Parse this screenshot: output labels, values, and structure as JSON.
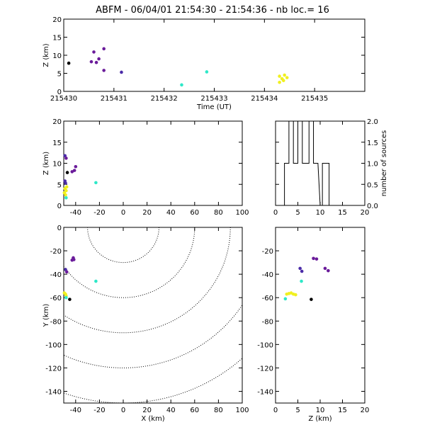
{
  "title": "ABFM - 06/04/01 21:54:30 - 21:54:36 - nb loc.=      16",
  "colors": {
    "purple": "#6a1b9a",
    "indigo": "#4b2ca8",
    "black": "#000000",
    "cyan": "#2ee8c8",
    "yellow": "#f0f020"
  },
  "chart_data": [
    {
      "type": "scatter",
      "id": "z-vs-time",
      "xlabel": "Time (UT)",
      "ylabel": "Z (km)",
      "xlim": [
        215430,
        215436
      ],
      "ylim": [
        0,
        20
      ],
      "xticks": [
        "215430",
        "215431",
        "215432",
        "215433",
        "215434",
        "215435"
      ],
      "yticks": [
        "0",
        "5",
        "10",
        "15",
        "20"
      ],
      "points": [
        {
          "x": 215430.1,
          "y": 7.8,
          "color": "black"
        },
        {
          "x": 215430.55,
          "y": 8.2,
          "color": "purple"
        },
        {
          "x": 215430.6,
          "y": 10.9,
          "color": "purple"
        },
        {
          "x": 215430.65,
          "y": 8.0,
          "color": "purple"
        },
        {
          "x": 215430.7,
          "y": 9.0,
          "color": "purple"
        },
        {
          "x": 215430.8,
          "y": 11.8,
          "color": "purple"
        },
        {
          "x": 215430.8,
          "y": 5.8,
          "color": "purple"
        },
        {
          "x": 215431.15,
          "y": 5.3,
          "color": "indigo"
        },
        {
          "x": 215432.35,
          "y": 1.8,
          "color": "cyan"
        },
        {
          "x": 215432.85,
          "y": 5.4,
          "color": "cyan"
        },
        {
          "x": 215434.3,
          "y": 2.5,
          "color": "yellow"
        },
        {
          "x": 215434.35,
          "y": 3.5,
          "color": "yellow"
        },
        {
          "x": 215434.4,
          "y": 4.5,
          "color": "yellow"
        },
        {
          "x": 215434.45,
          "y": 3.8,
          "color": "yellow"
        },
        {
          "x": 215434.3,
          "y": 4.2,
          "color": "yellow"
        },
        {
          "x": 215434.38,
          "y": 3.0,
          "color": "yellow"
        }
      ]
    },
    {
      "type": "scatter",
      "id": "z-vs-x",
      "xlabel": "",
      "ylabel": "Z (km)",
      "xlim": [
        -50,
        100
      ],
      "ylim": [
        0,
        20
      ],
      "xticks": [
        "-40",
        "-20",
        "0",
        "20",
        "40",
        "60",
        "80",
        "100"
      ],
      "yticks": [
        "0",
        "5",
        "10",
        "15",
        "20"
      ],
      "points": [
        {
          "x": -49,
          "y": 11.8,
          "color": "indigo"
        },
        {
          "x": -48,
          "y": 11.2,
          "color": "purple"
        },
        {
          "x": -49,
          "y": 5.8,
          "color": "indigo"
        },
        {
          "x": -48.5,
          "y": 5.3,
          "color": "indigo"
        },
        {
          "x": -43,
          "y": 8.0,
          "color": "purple"
        },
        {
          "x": -41,
          "y": 8.3,
          "color": "purple"
        },
        {
          "x": -40,
          "y": 9.2,
          "color": "purple"
        },
        {
          "x": -47,
          "y": 7.8,
          "color": "black"
        },
        {
          "x": -49,
          "y": 4.0,
          "color": "yellow"
        },
        {
          "x": -48,
          "y": 3.5,
          "color": "yellow"
        },
        {
          "x": -49.5,
          "y": 3.0,
          "color": "yellow"
        },
        {
          "x": -47.5,
          "y": 4.4,
          "color": "yellow"
        },
        {
          "x": -48.5,
          "y": 2.5,
          "color": "yellow"
        },
        {
          "x": -48,
          "y": 1.8,
          "color": "cyan"
        },
        {
          "x": -23,
          "y": 5.4,
          "color": "cyan"
        }
      ]
    },
    {
      "type": "histogram",
      "id": "sources-vs-z",
      "xlabel": "",
      "ylabel": "number of sources",
      "xlim": [
        0,
        20
      ],
      "ylim": [
        0,
        2
      ],
      "xticks": [
        "0",
        "5",
        "10",
        "15",
        "20"
      ],
      "yticks": [
        "0.0",
        "0.5",
        "1.0",
        "1.5",
        "2.0"
      ],
      "bin_width": 0.5,
      "bins": [
        {
          "x0": 2.0,
          "count": 1
        },
        {
          "x0": 2.5,
          "count": 1
        },
        {
          "x0": 3.0,
          "count": 2
        },
        {
          "x0": 3.5,
          "count": 2
        },
        {
          "x0": 4.0,
          "count": 1
        },
        {
          "x0": 4.5,
          "count": 1
        },
        {
          "x0": 5.0,
          "count": 2
        },
        {
          "x0": 5.5,
          "count": 2
        },
        {
          "x0": 6.0,
          "count": 1
        },
        {
          "x0": 7.0,
          "count": 1
        },
        {
          "x0": 7.5,
          "count": 2
        },
        {
          "x0": 8.0,
          "count": 2
        },
        {
          "x0": 8.5,
          "count": 1
        },
        {
          "x0": 9.0,
          "count": 1
        },
        {
          "x0": 10.0,
          "count": 0
        },
        {
          "x0": 10.5,
          "count": 1
        },
        {
          "x0": 11.0,
          "count": 1
        },
        {
          "x0": 11.5,
          "count": 1
        }
      ]
    },
    {
      "type": "scatter",
      "id": "y-vs-x",
      "xlabel": "X (km)",
      "ylabel": "Y (km)",
      "xlim": [
        -50,
        100
      ],
      "ylim": [
        -150,
        0
      ],
      "xticks": [
        "-40",
        "-20",
        "0",
        "20",
        "40",
        "60",
        "80",
        "100"
      ],
      "yticks": [
        "0",
        "-20",
        "-40",
        "-60",
        "-80",
        "-100",
        "-120",
        "-140"
      ],
      "range_rings_km": [
        30,
        60,
        90,
        120,
        150,
        180
      ],
      "points": [
        {
          "x": -48.5,
          "y": -36.0,
          "color": "indigo"
        },
        {
          "x": -47.5,
          "y": -38.0,
          "color": "purple"
        },
        {
          "x": -43,
          "y": -28.0,
          "color": "purple"
        },
        {
          "x": -42,
          "y": -26.0,
          "color": "purple"
        },
        {
          "x": -41.5,
          "y": -27.5,
          "color": "purple"
        },
        {
          "x": -48.5,
          "y": -57.0,
          "color": "yellow"
        },
        {
          "x": -48,
          "y": -58.5,
          "color": "yellow"
        },
        {
          "x": -49.5,
          "y": -56.0,
          "color": "yellow"
        },
        {
          "x": -48,
          "y": -60.0,
          "color": "cyan"
        },
        {
          "x": -45,
          "y": -61.5,
          "color": "black"
        },
        {
          "x": -23,
          "y": -46.0,
          "color": "cyan"
        }
      ]
    },
    {
      "type": "scatter",
      "id": "y-vs-z",
      "xlabel": "Z (km)",
      "ylabel": "",
      "xlim": [
        0,
        20
      ],
      "ylim": [
        -150,
        0
      ],
      "xticks": [
        "0",
        "5",
        "10",
        "15",
        "20"
      ],
      "yticks": [
        "-20",
        "-40",
        "-60",
        "-80",
        "-100",
        "-120",
        "-140"
      ],
      "points": [
        {
          "x": 8.5,
          "y": -26.5,
          "color": "purple"
        },
        {
          "x": 9.2,
          "y": -27.0,
          "color": "purple"
        },
        {
          "x": 5.5,
          "y": -35.0,
          "color": "indigo"
        },
        {
          "x": 5.9,
          "y": -37.5,
          "color": "indigo"
        },
        {
          "x": 11.1,
          "y": -35.0,
          "color": "purple"
        },
        {
          "x": 11.8,
          "y": -37.0,
          "color": "purple"
        },
        {
          "x": 5.8,
          "y": -46.0,
          "color": "cyan"
        },
        {
          "x": 3.0,
          "y": -56.5,
          "color": "yellow"
        },
        {
          "x": 3.5,
          "y": -56.0,
          "color": "yellow"
        },
        {
          "x": 4.0,
          "y": -57.0,
          "color": "yellow"
        },
        {
          "x": 4.5,
          "y": -57.5,
          "color": "yellow"
        },
        {
          "x": 2.5,
          "y": -57.0,
          "color": "yellow"
        },
        {
          "x": 2.2,
          "y": -61.0,
          "color": "cyan"
        },
        {
          "x": 8.0,
          "y": -61.5,
          "color": "black"
        }
      ]
    }
  ]
}
